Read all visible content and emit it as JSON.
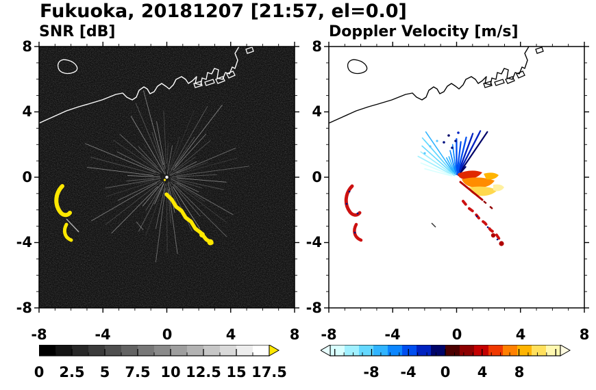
{
  "title": "Fukuoka, 20181207 [21:57, el=0.0]",
  "panels": {
    "snr": {
      "title": "SNR [dB]"
    },
    "velocity": {
      "title": "Doppler Velocity [m/s]"
    }
  },
  "axes": {
    "range": [
      -8,
      8
    ],
    "major_step": 4,
    "minor_step": 1,
    "x_tick_labels": [
      "-8",
      "-4",
      "0",
      "4",
      "8"
    ],
    "y_tick_labels": [
      "8",
      "4",
      "0",
      "-4",
      "-8"
    ]
  },
  "colorbars": {
    "snr": {
      "tick_labels": [
        "0",
        "2.5",
        "5",
        "7.5",
        "10",
        "12.5",
        "15",
        "17.5"
      ],
      "min": 0,
      "max": 17.5,
      "minor_step": 1.25,
      "major_step": 2.5,
      "colors": [
        "#000000",
        "#141414",
        "#282828",
        "#3b3b3b",
        "#4f4f4f",
        "#636363",
        "#777777",
        "#8a8a8a",
        "#9e9e9e",
        "#b2b2b2",
        "#c6c6c6",
        "#d9d9d9",
        "#ededed",
        "#ffffff"
      ],
      "over_arrow_color": "#ffe800"
    },
    "velocity": {
      "tick_labels": [
        "-8",
        "-4",
        "0",
        "4",
        "8"
      ],
      "min": -12.5,
      "max": 12.5,
      "minor_step": 1,
      "major_step": 4,
      "colors": [
        "#d8ffff",
        "#a0f0ff",
        "#64d8ff",
        "#30b4ff",
        "#0c86ff",
        "#004ef0",
        "#0022c0",
        "#000468",
        "#4c0000",
        "#8c0000",
        "#c40000",
        "#f03800",
        "#ff8000",
        "#ffb400",
        "#ffe05c",
        "#fff8b0"
      ],
      "under_arrow_color": "#e8ffff",
      "over_arrow_color": "#fffbe0"
    }
  },
  "chart_data": [
    {
      "type": "heatmap",
      "title": "SNR [dB]",
      "xlabel": "",
      "ylabel": "",
      "xlim": [
        -8,
        8
      ],
      "ylim": [
        -8,
        8
      ],
      "x_ticks": [
        -8,
        -4,
        0,
        4,
        8
      ],
      "y_ticks": [
        -8,
        -4,
        0,
        4,
        8
      ],
      "grid": false,
      "background_value": "near 0 dB (black with random speckle noise)",
      "colorbar": {
        "range": [
          0,
          17.5
        ],
        "ticks": [
          0,
          2.5,
          5,
          7.5,
          10,
          12.5,
          15,
          17.5
        ],
        "colormap": "linear black-to-white grayscale, yellow over-range arrow"
      },
      "radar_origin": [
        0,
        0
      ],
      "features": [
        {
          "name": "coastline",
          "value": "white Fukuoka bay coastline with harbor piers across upper third, small island near (-6.5, 5.5), coast exits top near x=4.7"
        },
        {
          "name": "clutter-streaks",
          "value": "bright gray radial streaks emanating in all directions from radar origin (0,0), brightest core at origin"
        },
        {
          "name": "echo-arc-1",
          "value": "saturated (>17.5 dB, yellow) crescent echo from (-6.8, -0.9) to (-6.3, -2.4)"
        },
        {
          "name": "echo-arc-2",
          "value": "saturated yellow arc echo from (-6.4, -3.1) to (-5.9, -3.9)"
        },
        {
          "name": "echo-chain",
          "value": "saturated yellow diagonal echo chain from (0.2, -1.1) to (2.9, -4.2), blobbier at lower end"
        }
      ]
    },
    {
      "type": "heatmap",
      "title": "Doppler Velocity [m/s]",
      "xlabel": "",
      "ylabel": "",
      "xlim": [
        -8,
        8
      ],
      "ylim": [
        -8,
        8
      ],
      "x_ticks": [
        -8,
        -4,
        0,
        4,
        8
      ],
      "y_ticks": [
        -8,
        -4,
        0,
        4,
        8
      ],
      "grid": false,
      "background_value": "no data (white)",
      "colorbar": {
        "range": [
          -12.5,
          12.5
        ],
        "ticks": [
          -8,
          -4,
          0,
          4,
          8
        ],
        "colormap": "diverging: light cyan -> blue -> dark navy (negative) | dark maroon -> red -> orange -> yellow -> pale yellow (positive)"
      },
      "radar_origin": [
        0,
        0
      ],
      "features": [
        {
          "name": "coastline",
          "value": "same coastline as SNR panel, drawn in black"
        },
        {
          "name": "negative-fan",
          "value": "fan of cyan-to-navy streaks north/north-west of origin, approx -2 to -10 m/s, darkest near vertical"
        },
        {
          "name": "positive-wedge",
          "value": "compact red/orange/yellow mottled wedge east of origin, approx +2 to +10 m/s, with dark-red streak trailing south-east"
        },
        {
          "name": "echo-arc-1",
          "value": "red crescent echo from (-6.8, -0.9) to (-6.3, -2.4) with dark-blue specks"
        },
        {
          "name": "echo-arc-2",
          "value": "red arc echo from (-6.4, -3.1) to (-5.9, -3.9)"
        },
        {
          "name": "echo-chain",
          "value": "sparse red/dark-red dashes with navy specks along diagonal from (0.8, -1.6) to (2.9, -4.2)"
        }
      ]
    }
  ]
}
